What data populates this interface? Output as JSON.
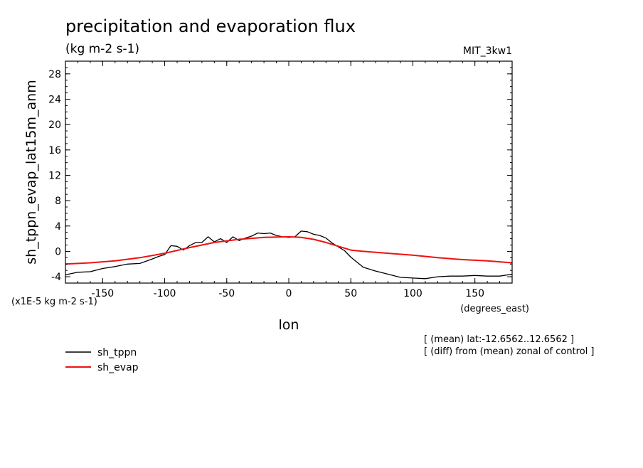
{
  "chart_data": {
    "type": "line",
    "title": "precipitation and evaporation flux",
    "subtitle": "(kg m-2 s-1)",
    "model": "MIT_3kw1",
    "xlabel": "lon",
    "xunits": "(degrees_east)",
    "ylabel": "sh_tppn_evap_lat15m_anm",
    "yunits": "(x1E-5 kg m-2 s-1)",
    "xlim": [
      -180,
      180
    ],
    "ylim": [
      -5,
      30
    ],
    "xticks": [
      -150,
      -100,
      -50,
      0,
      50,
      100,
      150
    ],
    "xtick_labels": [
      "-150",
      "-100",
      "-50",
      "0",
      "50",
      "100",
      "150"
    ],
    "yticks": [
      -4,
      0,
      4,
      8,
      12,
      16,
      20,
      24,
      28
    ],
    "ytick_labels": [
      "-4",
      "0",
      "4",
      "8",
      "12",
      "16",
      "20",
      "24",
      "28"
    ],
    "notes": [
      "[ (mean) lat:-12.6562..12.6562 ]",
      "[ (diff) from (mean) zonal of control ]"
    ],
    "legend_position": "bottom-left",
    "series": [
      {
        "name": "sh_tppn",
        "color": "#000000",
        "x": [
          -180,
          -170,
          -160,
          -150,
          -140,
          -130,
          -120,
          -110,
          -105,
          -100,
          -95,
          -90,
          -85,
          -80,
          -75,
          -70,
          -65,
          -60,
          -55,
          -50,
          -45,
          -40,
          -35,
          -30,
          -25,
          -20,
          -15,
          -10,
          -5,
          0,
          5,
          10,
          15,
          20,
          25,
          30,
          35,
          40,
          45,
          50,
          55,
          60,
          70,
          80,
          90,
          100,
          110,
          120,
          130,
          140,
          150,
          160,
          170,
          180
        ],
        "values": [
          -3.7,
          -3.3,
          -3.2,
          -2.7,
          -2.4,
          -2.0,
          -1.9,
          -1.2,
          -0.8,
          -0.5,
          0.9,
          0.8,
          0.2,
          0.9,
          1.4,
          1.4,
          2.3,
          1.5,
          2.0,
          1.4,
          2.3,
          1.7,
          2.1,
          2.4,
          2.9,
          2.8,
          2.9,
          2.5,
          2.3,
          2.2,
          2.3,
          3.2,
          3.1,
          2.7,
          2.5,
          2.1,
          1.3,
          0.7,
          0.1,
          -0.9,
          -1.7,
          -2.5,
          -3.1,
          -3.6,
          -4.1,
          -4.2,
          -4.3,
          -4.0,
          -3.9,
          -3.9,
          -3.8,
          -3.9,
          -3.9,
          -3.6
        ]
      },
      {
        "name": "sh_evap",
        "color": "#ee1111",
        "x": [
          -180,
          -160,
          -140,
          -120,
          -100,
          -80,
          -60,
          -40,
          -20,
          0,
          10,
          20,
          30,
          40,
          50,
          60,
          80,
          100,
          120,
          140,
          160,
          180
        ],
        "values": [
          -2.0,
          -1.8,
          -1.5,
          -1.0,
          -0.3,
          0.6,
          1.4,
          1.9,
          2.2,
          2.3,
          2.2,
          1.9,
          1.4,
          0.8,
          0.2,
          0.0,
          -0.3,
          -0.6,
          -1.0,
          -1.3,
          -1.5,
          -1.8
        ]
      }
    ]
  }
}
